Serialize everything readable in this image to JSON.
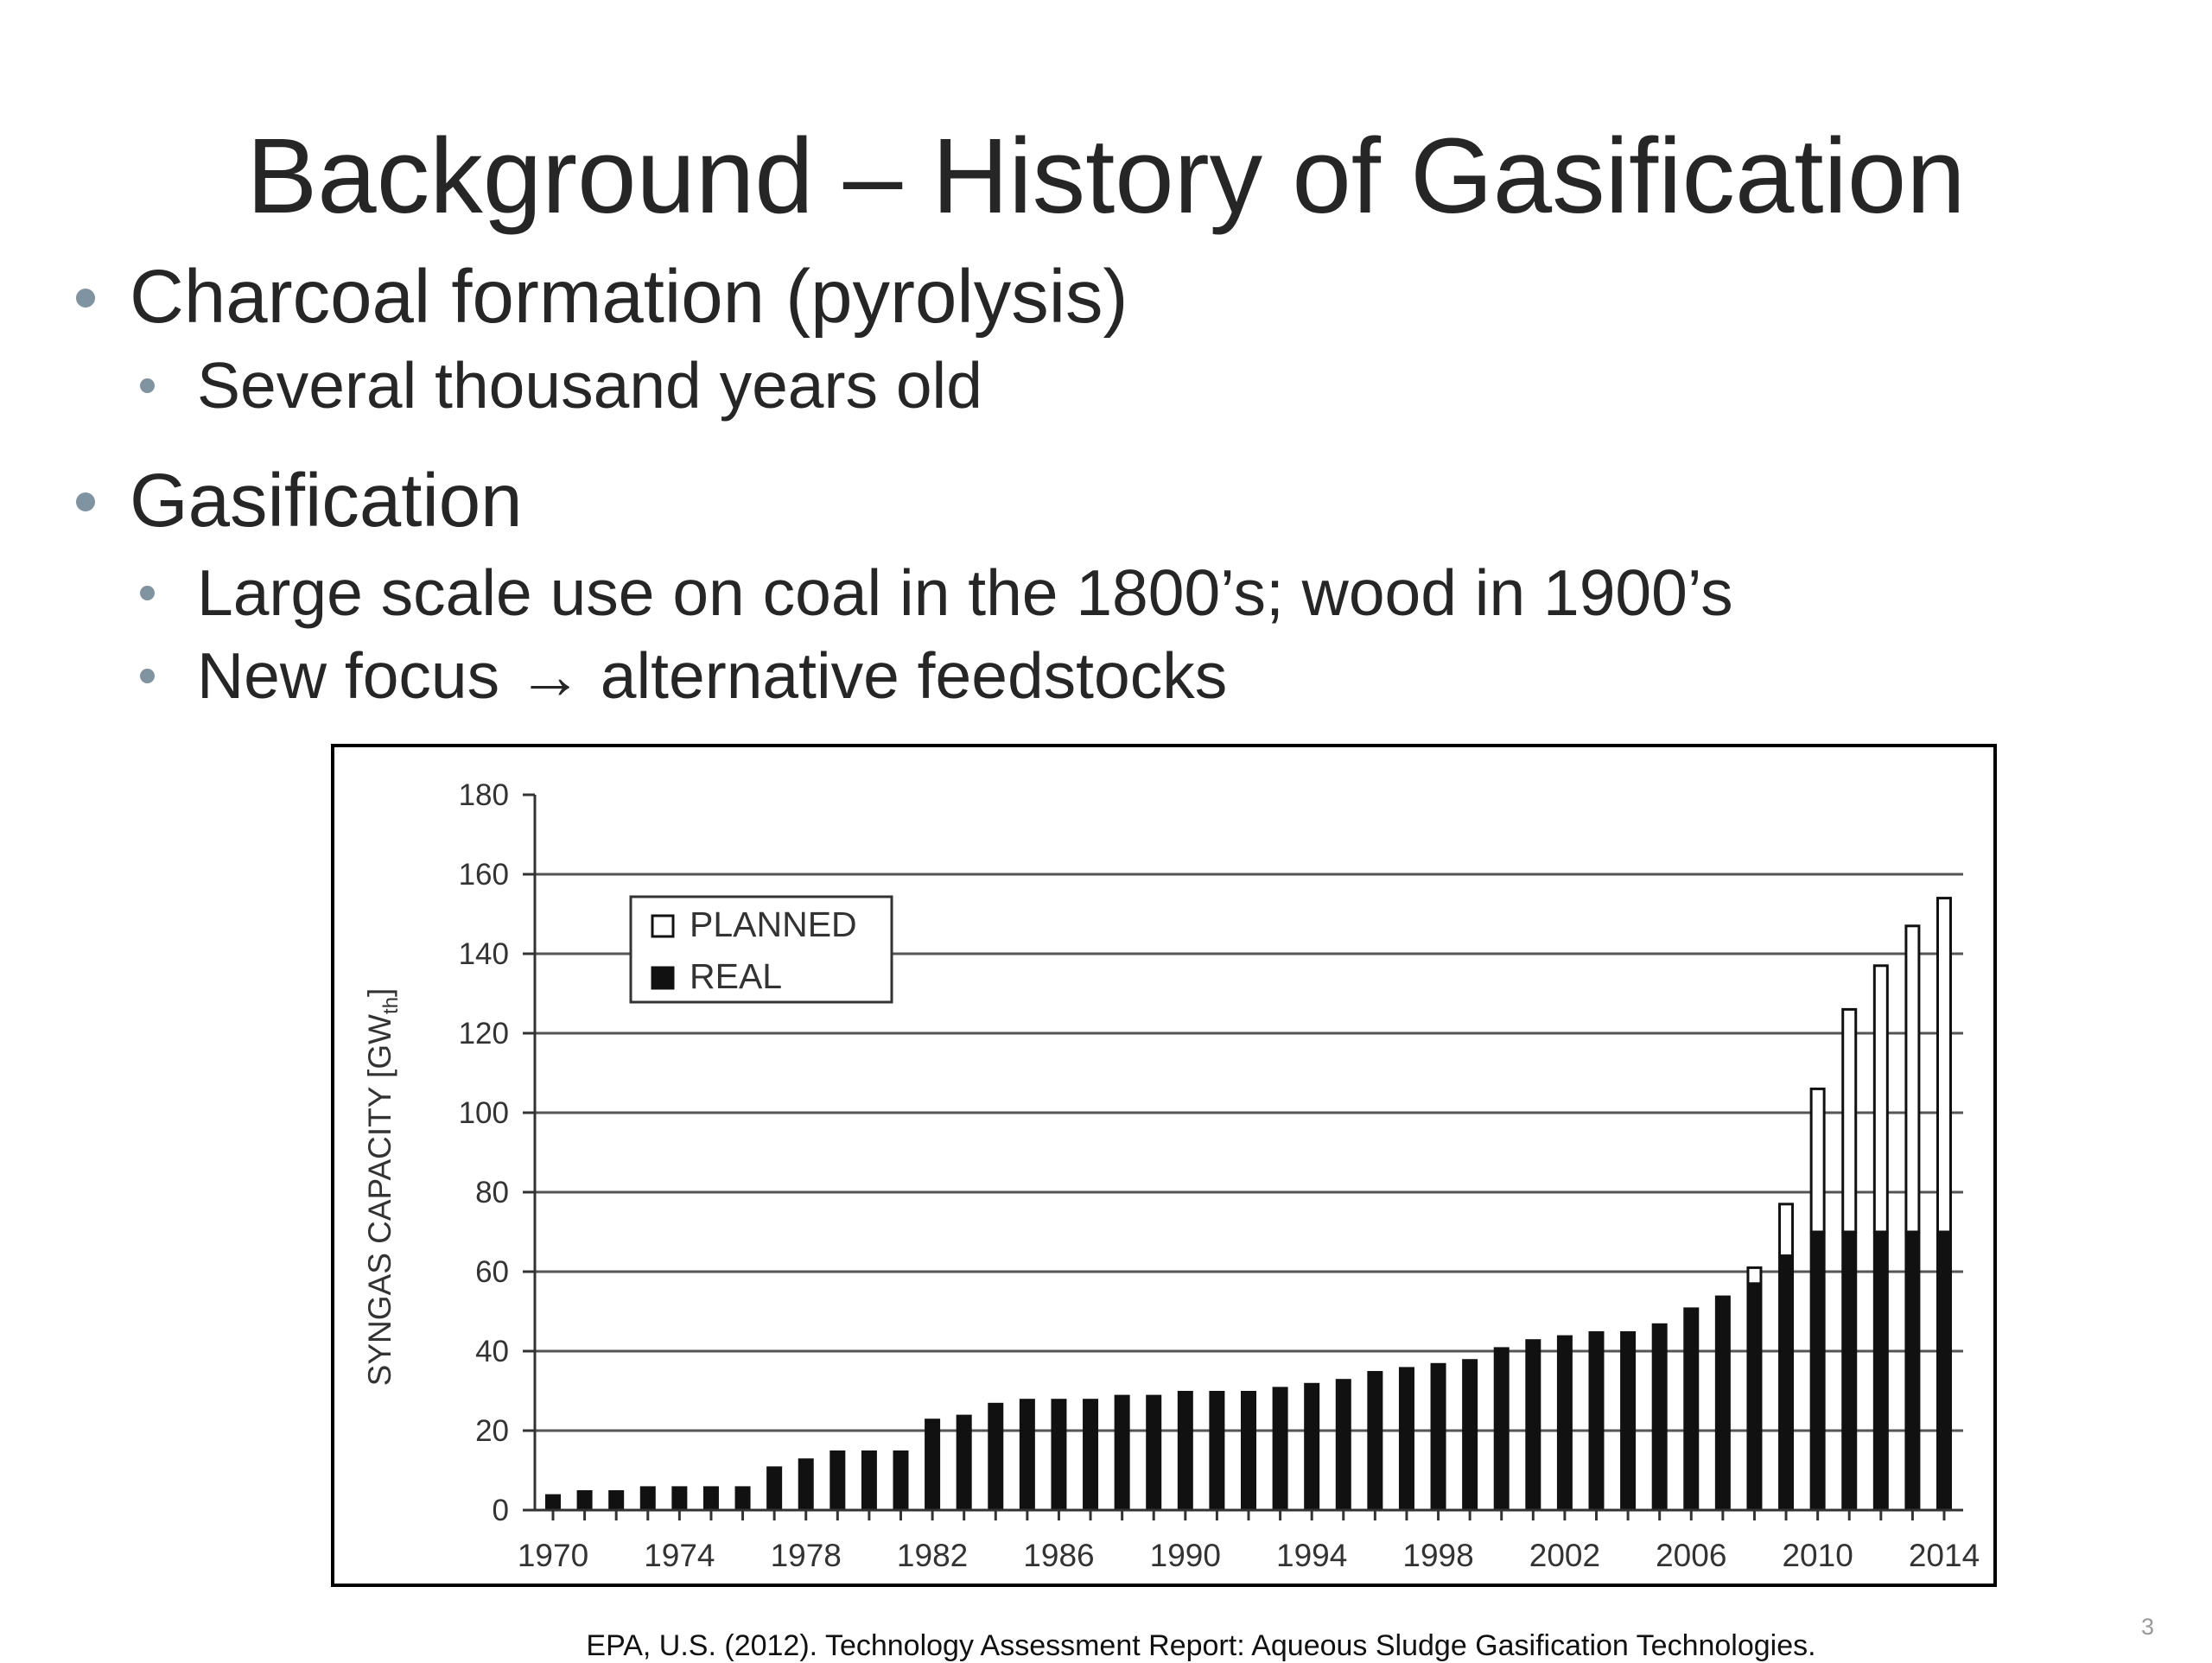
{
  "slide": {
    "title": "Background – History of Gasification",
    "bullets": [
      {
        "text": "Charcoal formation (pyrolysis)",
        "sub": [
          "Several thousand years old"
        ]
      },
      {
        "text": "Gasification",
        "sub": [
          "Large scale use on coal in the 1800’s; wood in 1900’s",
          "New focus → alternative feedstocks"
        ]
      }
    ],
    "citation": "EPA, U.S. (2012). Technology Assessment Report: Aqueous Sludge Gasification Technologies.",
    "page_number": "3"
  },
  "chart_data": {
    "type": "bar",
    "stacked": true,
    "ylabel": "SYNGAS CAPACITY [GWth]",
    "ylim": [
      0,
      180
    ],
    "yticks": [
      0,
      20,
      40,
      60,
      80,
      100,
      120,
      140,
      160,
      180
    ],
    "grid": "horizontal",
    "legend_position": "top-left",
    "xtick_labels": [
      "1970",
      "1974",
      "1978",
      "1982",
      "1986",
      "1990",
      "1994",
      "1998",
      "2002",
      "2006",
      "2010",
      "2014"
    ],
    "categories": [
      1970,
      1971,
      1972,
      1973,
      1974,
      1975,
      1976,
      1977,
      1978,
      1979,
      1980,
      1981,
      1982,
      1983,
      1984,
      1985,
      1986,
      1987,
      1988,
      1989,
      1990,
      1991,
      1992,
      1993,
      1994,
      1995,
      1996,
      1997,
      1998,
      1999,
      2000,
      2001,
      2002,
      2003,
      2004,
      2005,
      2006,
      2007,
      2008,
      2009,
      2010,
      2011,
      2012,
      2013,
      2014
    ],
    "series": [
      {
        "name": "REAL",
        "color": "#111111",
        "values": [
          4,
          5,
          5,
          6,
          6,
          6,
          6,
          11,
          13,
          15,
          15,
          15,
          23,
          24,
          27,
          28,
          28,
          28,
          29,
          29,
          30,
          30,
          30,
          31,
          32,
          33,
          35,
          36,
          37,
          38,
          41,
          43,
          44,
          45,
          45,
          47,
          51,
          54,
          57,
          64,
          70,
          70,
          70,
          70,
          70
        ]
      },
      {
        "name": "PLANNED",
        "color": "#ffffff",
        "values": [
          0,
          0,
          0,
          0,
          0,
          0,
          0,
          0,
          0,
          0,
          0,
          0,
          0,
          0,
          0,
          0,
          0,
          0,
          0,
          0,
          0,
          0,
          0,
          0,
          0,
          0,
          0,
          0,
          0,
          0,
          0,
          0,
          0,
          0,
          0,
          0,
          0,
          0,
          4,
          13,
          36,
          56,
          67,
          77,
          84
        ]
      }
    ]
  }
}
